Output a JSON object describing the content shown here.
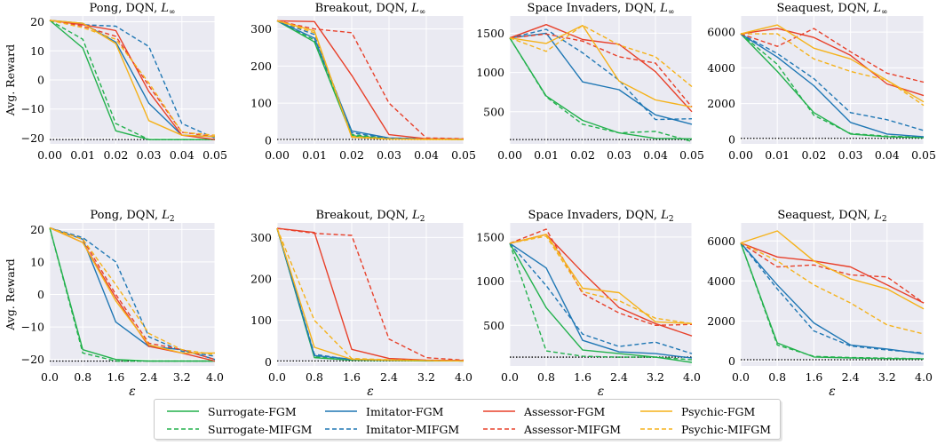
{
  "chart_data": [
    {
      "type": "line",
      "title": "Pong, DQN, ",
      "norm": "∞",
      "x": [
        0,
        0.01,
        0.02,
        0.03,
        0.04,
        0.05
      ],
      "xticks": [
        "0.00",
        "0.01",
        "0.02",
        "0.03",
        "0.04",
        "0.05"
      ],
      "ylim": [
        -22,
        22
      ],
      "yticks": [
        -20,
        -10,
        0,
        10,
        20
      ],
      "ylabel": "Avg. Reward",
      "xlabel": "",
      "baseline": -20.5,
      "series": [
        {
          "name": "Surrogate-FGM",
          "values": [
            20.5,
            11,
            -17.5,
            -20.5,
            -20.5,
            -20.5
          ]
        },
        {
          "name": "Surrogate-MIFGM",
          "values": [
            20.5,
            14,
            -15,
            -20.5,
            -20.5,
            -20.5
          ]
        },
        {
          "name": "Imitator-FGM",
          "values": [
            20.5,
            19.5,
            13,
            -8,
            -19,
            -19.5
          ]
        },
        {
          "name": "Imitator-MIFGM",
          "values": [
            20.5,
            19,
            18.5,
            11.5,
            -15,
            -20
          ]
        },
        {
          "name": "Assessor-FGM",
          "values": [
            20.5,
            19,
            17,
            -4,
            -19,
            -20.5
          ]
        },
        {
          "name": "Assessor-MIFGM",
          "values": [
            20.5,
            18.5,
            15,
            -2,
            -18,
            -19.5
          ]
        },
        {
          "name": "Psychic-FGM",
          "values": [
            20.5,
            19.5,
            12.5,
            -14,
            -19,
            -19.5
          ]
        },
        {
          "name": "Psychic-MIFGM",
          "values": [
            20.5,
            18,
            14,
            -1,
            -18,
            -19
          ]
        }
      ]
    },
    {
      "type": "line",
      "title": "Breakout, DQN, ",
      "norm": "∞",
      "x": [
        0,
        0.01,
        0.02,
        0.03,
        0.04,
        0.05
      ],
      "xticks": [
        "0.00",
        "0.01",
        "0.02",
        "0.03",
        "0.04",
        "0.05"
      ],
      "ylim": [
        -10,
        335
      ],
      "yticks": [
        0,
        100,
        200,
        300
      ],
      "ylabel": "",
      "xlabel": "",
      "baseline": 2,
      "series": [
        {
          "name": "Surrogate-FGM",
          "values": [
            322,
            265,
            12,
            4,
            3,
            2
          ]
        },
        {
          "name": "Surrogate-MIFGM",
          "values": [
            322,
            270,
            15,
            5,
            3,
            2
          ]
        },
        {
          "name": "Imitator-FGM",
          "values": [
            322,
            275,
            25,
            6,
            4,
            3
          ]
        },
        {
          "name": "Imitator-MIFGM",
          "values": [
            322,
            285,
            20,
            5,
            3,
            3
          ]
        },
        {
          "name": "Assessor-FGM",
          "values": [
            322,
            320,
            175,
            15,
            4,
            3
          ]
        },
        {
          "name": "Assessor-MIFGM",
          "values": [
            322,
            300,
            290,
            100,
            6,
            4
          ]
        },
        {
          "name": "Psychic-FGM",
          "values": [
            322,
            295,
            8,
            3,
            2,
            2
          ]
        },
        {
          "name": "Psychic-MIFGM",
          "values": [
            322,
            290,
            10,
            4,
            3,
            2
          ]
        }
      ]
    },
    {
      "type": "line",
      "title": "Space Invaders, DQN, ",
      "norm": "∞",
      "x": [
        0,
        0.01,
        0.02,
        0.03,
        0.04,
        0.05
      ],
      "xticks": [
        "0.00",
        "0.01",
        "0.02",
        "0.03",
        "0.04",
        "0.05"
      ],
      "ylim": [
        90,
        1720
      ],
      "yticks": [
        500,
        1000,
        1500
      ],
      "ylabel": "",
      "xlabel": "",
      "baseline": 145,
      "series": [
        {
          "name": "Surrogate-FGM",
          "values": [
            1440,
            700,
            390,
            230,
            160,
            155
          ]
        },
        {
          "name": "Surrogate-MIFGM",
          "values": [
            1440,
            690,
            340,
            230,
            250,
            120
          ]
        },
        {
          "name": "Imitator-FGM",
          "values": [
            1440,
            1500,
            880,
            780,
            460,
            340
          ]
        },
        {
          "name": "Imitator-MIFGM",
          "values": [
            1440,
            1550,
            1250,
            900,
            400,
            410
          ]
        },
        {
          "name": "Assessor-FGM",
          "values": [
            1440,
            1610,
            1420,
            1360,
            1010,
            500
          ]
        },
        {
          "name": "Assessor-MIFGM",
          "values": [
            1440,
            1490,
            1400,
            1200,
            1120,
            560
          ]
        },
        {
          "name": "Psychic-FGM",
          "values": [
            1440,
            1370,
            1600,
            890,
            650,
            560
          ]
        },
        {
          "name": "Psychic-MIFGM",
          "values": [
            1440,
            1270,
            1600,
            1350,
            1200,
            820
          ]
        }
      ]
    },
    {
      "type": "line",
      "title": "Seaquest, DQN, ",
      "norm": "∞",
      "x": [
        0,
        0.01,
        0.02,
        0.03,
        0.04,
        0.05
      ],
      "xticks": [
        "0.00",
        "0.01",
        "0.02",
        "0.03",
        "0.04",
        "0.05"
      ],
      "ylim": [
        -250,
        6900
      ],
      "yticks": [
        0,
        2000,
        4000,
        6000
      ],
      "ylabel": "",
      "xlabel": "",
      "baseline": 60,
      "series": [
        {
          "name": "Surrogate-FGM",
          "values": [
            5900,
            3800,
            1500,
            300,
            150,
            100
          ]
        },
        {
          "name": "Surrogate-MIFGM",
          "values": [
            5900,
            4200,
            1350,
            330,
            180,
            120
          ]
        },
        {
          "name": "Imitator-FGM",
          "values": [
            5900,
            4600,
            3000,
            950,
            300,
            150
          ]
        },
        {
          "name": "Imitator-MIFGM",
          "values": [
            5900,
            4800,
            3400,
            1500,
            1100,
            500
          ]
        },
        {
          "name": "Assessor-FGM",
          "values": [
            5900,
            6200,
            5700,
            4700,
            3100,
            2450
          ]
        },
        {
          "name": "Assessor-MIFGM",
          "values": [
            5900,
            5200,
            6200,
            4900,
            3700,
            3200
          ]
        },
        {
          "name": "Psychic-FGM",
          "values": [
            5900,
            6400,
            5100,
            4500,
            3300,
            2100
          ]
        },
        {
          "name": "Psychic-MIFGM",
          "values": [
            5900,
            5900,
            4500,
            3800,
            3300,
            1900
          ]
        }
      ]
    },
    {
      "type": "line",
      "title": "Pong, DQN, ",
      "norm": "2",
      "x": [
        0,
        0.8,
        1.6,
        2.4,
        3.2,
        4.0
      ],
      "xticks": [
        "0.0",
        "0.8",
        "1.6",
        "2.4",
        "3.2",
        "4.0"
      ],
      "ylim": [
        -22,
        22
      ],
      "yticks": [
        -20,
        -10,
        0,
        10,
        20
      ],
      "ylabel": "Avg. Reward",
      "xlabel": "ε",
      "baseline": -20.5,
      "series": [
        {
          "name": "Surrogate-FGM",
          "values": [
            20.5,
            -17,
            -20,
            -20.5,
            -20.5,
            -20.5
          ]
        },
        {
          "name": "Surrogate-MIFGM",
          "values": [
            20.5,
            -18,
            -20.5,
            -20.5,
            -20.5,
            -20.5
          ]
        },
        {
          "name": "Imitator-FGM",
          "values": [
            20.5,
            17,
            -8.5,
            -16,
            -17,
            -20
          ]
        },
        {
          "name": "Imitator-MIFGM",
          "values": [
            20.5,
            17.5,
            10,
            -13,
            -17.5,
            -19
          ]
        },
        {
          "name": "Assessor-FGM",
          "values": [
            20.5,
            16,
            -1,
            -16,
            -18,
            -20.5
          ]
        },
        {
          "name": "Assessor-MIFGM",
          "values": [
            20.5,
            17,
            0,
            -15,
            -17,
            -20
          ]
        },
        {
          "name": "Psychic-FGM",
          "values": [
            20.5,
            16,
            -2,
            -15.5,
            -18,
            -18
          ]
        },
        {
          "name": "Psychic-MIFGM",
          "values": [
            20.5,
            17,
            3,
            -12,
            -17,
            -18.5
          ]
        }
      ]
    },
    {
      "type": "line",
      "title": "Breakout, DQN, ",
      "norm": "2",
      "x": [
        0,
        0.8,
        1.6,
        2.4,
        3.2,
        4.0
      ],
      "xticks": [
        "0.0",
        "0.8",
        "1.6",
        "2.4",
        "3.2",
        "4.0"
      ],
      "ylim": [
        -10,
        335
      ],
      "yticks": [
        0,
        100,
        200,
        300
      ],
      "ylabel": "",
      "xlabel": "ε",
      "baseline": 2,
      "series": [
        {
          "name": "Surrogate-FGM",
          "values": [
            322,
            10,
            4,
            3,
            2,
            2
          ]
        },
        {
          "name": "Surrogate-MIFGM",
          "values": [
            322,
            12,
            5,
            3,
            3,
            2
          ]
        },
        {
          "name": "Imitator-FGM",
          "values": [
            322,
            15,
            6,
            4,
            3,
            2
          ]
        },
        {
          "name": "Imitator-MIFGM",
          "values": [
            322,
            18,
            5,
            4,
            3,
            3
          ]
        },
        {
          "name": "Assessor-FGM",
          "values": [
            322,
            312,
            30,
            8,
            4,
            3
          ]
        },
        {
          "name": "Assessor-MIFGM",
          "values": [
            322,
            310,
            305,
            55,
            10,
            4
          ]
        },
        {
          "name": "Psychic-FGM",
          "values": [
            322,
            35,
            6,
            4,
            3,
            2
          ]
        },
        {
          "name": "Psychic-MIFGM",
          "values": [
            322,
            100,
            8,
            5,
            3,
            2
          ]
        }
      ]
    },
    {
      "type": "line",
      "title": "Space Invaders, DQN, ",
      "norm": "2",
      "x": [
        0,
        0.8,
        1.6,
        2.4,
        3.2,
        4.0
      ],
      "xticks": [
        "0.0",
        "0.8",
        "1.6",
        "2.4",
        "3.2",
        "4.0"
      ],
      "ylim": [
        40,
        1660
      ],
      "yticks": [
        500,
        1000,
        1500
      ],
      "ylabel": "",
      "xlabel": "ε",
      "baseline": 140,
      "series": [
        {
          "name": "Surrogate-FGM",
          "values": [
            1430,
            700,
            220,
            180,
            140,
            80
          ]
        },
        {
          "name": "Surrogate-MIFGM",
          "values": [
            1430,
            210,
            150,
            140,
            140,
            110
          ]
        },
        {
          "name": "Imitator-FGM",
          "values": [
            1430,
            1150,
            330,
            200,
            180,
            130
          ]
        },
        {
          "name": "Imitator-MIFGM",
          "values": [
            1430,
            950,
            400,
            260,
            310,
            180
          ]
        },
        {
          "name": "Assessor-FGM",
          "values": [
            1430,
            1530,
            1100,
            700,
            520,
            380
          ]
        },
        {
          "name": "Assessor-MIFGM",
          "values": [
            1430,
            1590,
            860,
            640,
            500,
            510
          ]
        },
        {
          "name": "Psychic-FGM",
          "values": [
            1430,
            1530,
            920,
            870,
            540,
            520
          ]
        },
        {
          "name": "Psychic-MIFGM",
          "values": [
            1430,
            1510,
            880,
            780,
            580,
            520
          ]
        }
      ]
    },
    {
      "type": "line",
      "title": "Seaquest, DQN, ",
      "norm": "2",
      "x": [
        0,
        0.8,
        1.6,
        2.4,
        3.2,
        4.0
      ],
      "xticks": [
        "0.0",
        "0.8",
        "1.6",
        "2.4",
        "3.2",
        "4.0"
      ],
      "ylim": [
        -250,
        6900
      ],
      "yticks": [
        0,
        2000,
        4000,
        6000
      ],
      "ylabel": "",
      "xlabel": "ε",
      "baseline": 60,
      "series": [
        {
          "name": "Surrogate-FGM",
          "values": [
            5900,
            900,
            200,
            150,
            120,
            100
          ]
        },
        {
          "name": "Surrogate-MIFGM",
          "values": [
            5900,
            800,
            230,
            170,
            140,
            110
          ]
        },
        {
          "name": "Imitator-FGM",
          "values": [
            5900,
            3800,
            1900,
            800,
            600,
            350
          ]
        },
        {
          "name": "Imitator-MIFGM",
          "values": [
            5900,
            3600,
            1500,
            750,
            550,
            400
          ]
        },
        {
          "name": "Assessor-FGM",
          "values": [
            5900,
            5200,
            5000,
            4700,
            3800,
            2900
          ]
        },
        {
          "name": "Assessor-MIFGM",
          "values": [
            5900,
            4700,
            4800,
            4300,
            4200,
            2900
          ]
        },
        {
          "name": "Psychic-FGM",
          "values": [
            5900,
            6500,
            5000,
            4100,
            3600,
            2600
          ]
        },
        {
          "name": "Psychic-MIFGM",
          "values": [
            5900,
            5000,
            3800,
            2900,
            1800,
            1350
          ]
        }
      ]
    }
  ],
  "style": {
    "colors": {
      "Surrogate": "#22b14c",
      "Imitator": "#1f77b4",
      "Assessor": "#e8402a",
      "Psychic": "#f5b21a"
    },
    "panel_bg": "#eaeaf2",
    "grid": "#ffffff",
    "baseline_color": "#000000"
  },
  "legend": [
    {
      "name": "Surrogate-FGM",
      "color": "#22b14c",
      "dash": false
    },
    {
      "name": "Imitator-FGM",
      "color": "#1f77b4",
      "dash": false
    },
    {
      "name": "Assessor-FGM",
      "color": "#e8402a",
      "dash": false
    },
    {
      "name": "Psychic-FGM",
      "color": "#f5b21a",
      "dash": false
    },
    {
      "name": "Surrogate-MIFGM",
      "color": "#22b14c",
      "dash": true
    },
    {
      "name": "Imitator-MIFGM",
      "color": "#1f77b4",
      "dash": true
    },
    {
      "name": "Assessor-MIFGM",
      "color": "#e8402a",
      "dash": true
    },
    {
      "name": "Psychic-MIFGM",
      "color": "#f5b21a",
      "dash": true
    }
  ]
}
